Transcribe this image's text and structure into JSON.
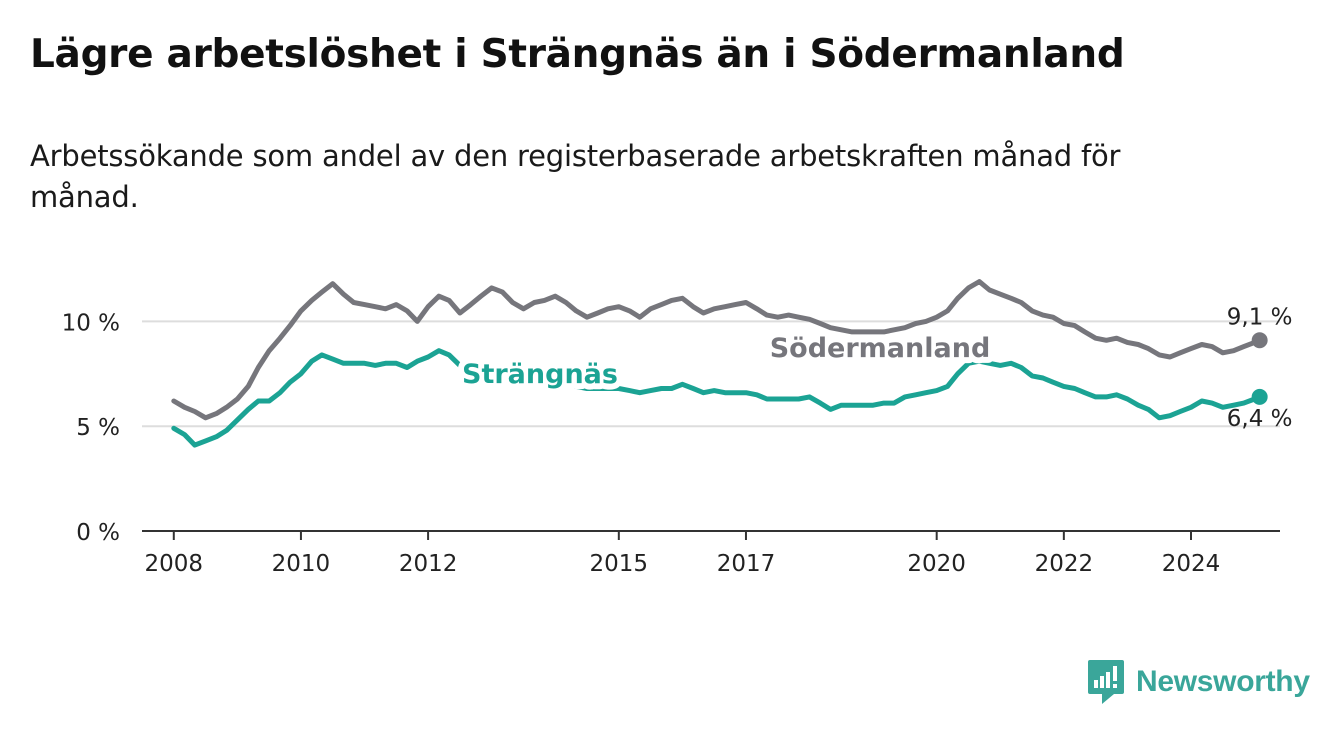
{
  "title": "Lägre arbetslöshet i Strängnäs än i Södermanland",
  "subtitle": "Arbetssökande som andel av den registerbaserade arbetskraften månad för månad.",
  "brand": "Newsworthy",
  "icons": {
    "brand_logo": "newsworthy-logo-icon"
  },
  "colors": {
    "strangnas": "#1ba394",
    "sodermanland": "#76767c",
    "grid": "#dddddd",
    "axis": "#333333",
    "brand": "#3aa69a"
  },
  "chart_data": {
    "type": "line",
    "ylim": [
      0,
      12.5
    ],
    "xlim": [
      2007.5,
      2025.4
    ],
    "y_ticks": [
      0,
      5,
      10
    ],
    "y_tick_labels": [
      "0 %",
      "5 %",
      "10 %"
    ],
    "x_ticks": [
      2008,
      2010,
      2012,
      2015,
      2017,
      2020,
      2022,
      2024
    ],
    "x_tick_labels": [
      "2008",
      "2010",
      "2012",
      "2015",
      "2017",
      "2020",
      "2022",
      "2024"
    ],
    "grid": "horizontal",
    "series": [
      {
        "name": "Södermanland",
        "color_key": "sodermanland",
        "end_label": "9,1 %",
        "points": [
          [
            2008.0,
            6.2
          ],
          [
            2008.17,
            5.9
          ],
          [
            2008.33,
            5.7
          ],
          [
            2008.5,
            5.4
          ],
          [
            2008.67,
            5.6
          ],
          [
            2008.83,
            5.9
          ],
          [
            2009.0,
            6.3
          ],
          [
            2009.17,
            6.9
          ],
          [
            2009.33,
            7.8
          ],
          [
            2009.5,
            8.6
          ],
          [
            2009.67,
            9.2
          ],
          [
            2009.83,
            9.8
          ],
          [
            2010.0,
            10.5
          ],
          [
            2010.17,
            11.0
          ],
          [
            2010.33,
            11.4
          ],
          [
            2010.5,
            11.8
          ],
          [
            2010.67,
            11.3
          ],
          [
            2010.83,
            10.9
          ],
          [
            2011.0,
            10.8
          ],
          [
            2011.17,
            10.7
          ],
          [
            2011.33,
            10.6
          ],
          [
            2011.5,
            10.8
          ],
          [
            2011.67,
            10.5
          ],
          [
            2011.83,
            10.0
          ],
          [
            2012.0,
            10.7
          ],
          [
            2012.17,
            11.2
          ],
          [
            2012.33,
            11.0
          ],
          [
            2012.5,
            10.4
          ],
          [
            2012.67,
            10.8
          ],
          [
            2012.83,
            11.2
          ],
          [
            2013.0,
            11.6
          ],
          [
            2013.17,
            11.4
          ],
          [
            2013.33,
            10.9
          ],
          [
            2013.5,
            10.6
          ],
          [
            2013.67,
            10.9
          ],
          [
            2013.83,
            11.0
          ],
          [
            2014.0,
            11.2
          ],
          [
            2014.17,
            10.9
          ],
          [
            2014.33,
            10.5
          ],
          [
            2014.5,
            10.2
          ],
          [
            2014.67,
            10.4
          ],
          [
            2014.83,
            10.6
          ],
          [
            2015.0,
            10.7
          ],
          [
            2015.17,
            10.5
          ],
          [
            2015.33,
            10.2
          ],
          [
            2015.5,
            10.6
          ],
          [
            2015.67,
            10.8
          ],
          [
            2015.83,
            11.0
          ],
          [
            2016.0,
            11.1
          ],
          [
            2016.17,
            10.7
          ],
          [
            2016.33,
            10.4
          ],
          [
            2016.5,
            10.6
          ],
          [
            2016.67,
            10.7
          ],
          [
            2016.83,
            10.8
          ],
          [
            2017.0,
            10.9
          ],
          [
            2017.17,
            10.6
          ],
          [
            2017.33,
            10.3
          ],
          [
            2017.5,
            10.2
          ],
          [
            2017.67,
            10.3
          ],
          [
            2017.83,
            10.2
          ],
          [
            2018.0,
            10.1
          ],
          [
            2018.17,
            9.9
          ],
          [
            2018.33,
            9.7
          ],
          [
            2018.5,
            9.6
          ],
          [
            2018.67,
            9.5
          ],
          [
            2018.83,
            9.5
          ],
          [
            2019.0,
            9.5
          ],
          [
            2019.17,
            9.5
          ],
          [
            2019.33,
            9.6
          ],
          [
            2019.5,
            9.7
          ],
          [
            2019.67,
            9.9
          ],
          [
            2019.83,
            10.0
          ],
          [
            2020.0,
            10.2
          ],
          [
            2020.17,
            10.5
          ],
          [
            2020.33,
            11.1
          ],
          [
            2020.5,
            11.6
          ],
          [
            2020.67,
            11.9
          ],
          [
            2020.83,
            11.5
          ],
          [
            2021.0,
            11.3
          ],
          [
            2021.17,
            11.1
          ],
          [
            2021.33,
            10.9
          ],
          [
            2021.5,
            10.5
          ],
          [
            2021.67,
            10.3
          ],
          [
            2021.83,
            10.2
          ],
          [
            2022.0,
            9.9
          ],
          [
            2022.17,
            9.8
          ],
          [
            2022.33,
            9.5
          ],
          [
            2022.5,
            9.2
          ],
          [
            2022.67,
            9.1
          ],
          [
            2022.83,
            9.2
          ],
          [
            2023.0,
            9.0
          ],
          [
            2023.17,
            8.9
          ],
          [
            2023.33,
            8.7
          ],
          [
            2023.5,
            8.4
          ],
          [
            2023.67,
            8.3
          ],
          [
            2023.83,
            8.5
          ],
          [
            2024.0,
            8.7
          ],
          [
            2024.17,
            8.9
          ],
          [
            2024.33,
            8.8
          ],
          [
            2024.5,
            8.5
          ],
          [
            2024.67,
            8.6
          ],
          [
            2024.83,
            8.8
          ],
          [
            2025.0,
            9.0
          ],
          [
            2025.08,
            9.1
          ]
        ]
      },
      {
        "name": "Strängnäs",
        "color_key": "strangnas",
        "end_label": "6,4 %",
        "points": [
          [
            2008.0,
            4.9
          ],
          [
            2008.17,
            4.6
          ],
          [
            2008.33,
            4.1
          ],
          [
            2008.5,
            4.3
          ],
          [
            2008.67,
            4.5
          ],
          [
            2008.83,
            4.8
          ],
          [
            2009.0,
            5.3
          ],
          [
            2009.17,
            5.8
          ],
          [
            2009.33,
            6.2
          ],
          [
            2009.5,
            6.2
          ],
          [
            2009.67,
            6.6
          ],
          [
            2009.83,
            7.1
          ],
          [
            2010.0,
            7.5
          ],
          [
            2010.17,
            8.1
          ],
          [
            2010.33,
            8.4
          ],
          [
            2010.5,
            8.2
          ],
          [
            2010.67,
            8.0
          ],
          [
            2010.83,
            8.0
          ],
          [
            2011.0,
            8.0
          ],
          [
            2011.17,
            7.9
          ],
          [
            2011.33,
            8.0
          ],
          [
            2011.5,
            8.0
          ],
          [
            2011.67,
            7.8
          ],
          [
            2011.83,
            8.1
          ],
          [
            2012.0,
            8.3
          ],
          [
            2012.17,
            8.6
          ],
          [
            2012.33,
            8.4
          ],
          [
            2012.5,
            7.9
          ],
          [
            2012.67,
            7.6
          ],
          [
            2012.83,
            7.4
          ],
          [
            2013.0,
            7.3
          ],
          [
            2013.17,
            7.2
          ],
          [
            2013.33,
            7.1
          ],
          [
            2013.5,
            7.1
          ],
          [
            2013.67,
            7.1
          ],
          [
            2013.83,
            7.0
          ],
          [
            2014.0,
            7.1
          ],
          [
            2014.17,
            7.0
          ],
          [
            2014.33,
            6.9
          ],
          [
            2014.5,
            6.8
          ],
          [
            2014.67,
            6.8
          ],
          [
            2014.83,
            6.8
          ],
          [
            2015.0,
            6.8
          ],
          [
            2015.17,
            6.7
          ],
          [
            2015.33,
            6.6
          ],
          [
            2015.5,
            6.7
          ],
          [
            2015.67,
            6.8
          ],
          [
            2015.83,
            6.8
          ],
          [
            2016.0,
            7.0
          ],
          [
            2016.17,
            6.8
          ],
          [
            2016.33,
            6.6
          ],
          [
            2016.5,
            6.7
          ],
          [
            2016.67,
            6.6
          ],
          [
            2016.83,
            6.6
          ],
          [
            2017.0,
            6.6
          ],
          [
            2017.17,
            6.5
          ],
          [
            2017.33,
            6.3
          ],
          [
            2017.5,
            6.3
          ],
          [
            2017.67,
            6.3
          ],
          [
            2017.83,
            6.3
          ],
          [
            2018.0,
            6.4
          ],
          [
            2018.17,
            6.1
          ],
          [
            2018.33,
            5.8
          ],
          [
            2018.5,
            6.0
          ],
          [
            2018.67,
            6.0
          ],
          [
            2018.83,
            6.0
          ],
          [
            2019.0,
            6.0
          ],
          [
            2019.17,
            6.1
          ],
          [
            2019.33,
            6.1
          ],
          [
            2019.5,
            6.4
          ],
          [
            2019.67,
            6.5
          ],
          [
            2019.83,
            6.6
          ],
          [
            2020.0,
            6.7
          ],
          [
            2020.17,
            6.9
          ],
          [
            2020.33,
            7.5
          ],
          [
            2020.5,
            8.0
          ],
          [
            2020.67,
            8.1
          ],
          [
            2020.83,
            8.0
          ],
          [
            2021.0,
            7.9
          ],
          [
            2021.17,
            8.0
          ],
          [
            2021.33,
            7.8
          ],
          [
            2021.5,
            7.4
          ],
          [
            2021.67,
            7.3
          ],
          [
            2021.83,
            7.1
          ],
          [
            2022.0,
            6.9
          ],
          [
            2022.17,
            6.8
          ],
          [
            2022.33,
            6.6
          ],
          [
            2022.5,
            6.4
          ],
          [
            2022.67,
            6.4
          ],
          [
            2022.83,
            6.5
          ],
          [
            2023.0,
            6.3
          ],
          [
            2023.17,
            6.0
          ],
          [
            2023.33,
            5.8
          ],
          [
            2023.5,
            5.4
          ],
          [
            2023.67,
            5.5
          ],
          [
            2023.83,
            5.7
          ],
          [
            2024.0,
            5.9
          ],
          [
            2024.17,
            6.2
          ],
          [
            2024.33,
            6.1
          ],
          [
            2024.5,
            5.9
          ],
          [
            2024.67,
            6.0
          ],
          [
            2024.83,
            6.1
          ],
          [
            2025.0,
            6.3
          ],
          [
            2025.08,
            6.4
          ]
        ]
      }
    ]
  }
}
